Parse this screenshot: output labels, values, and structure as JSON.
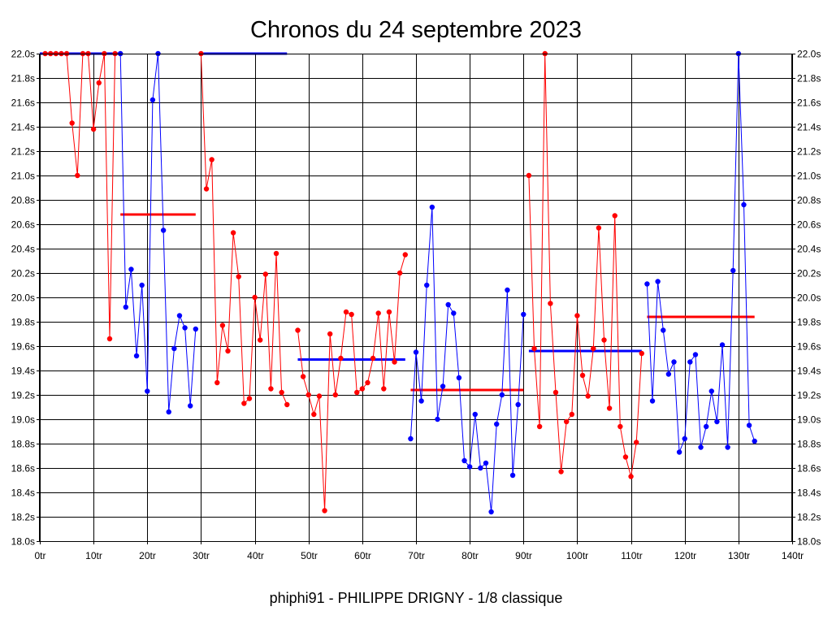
{
  "chart_data": {
    "type": "line",
    "title": "Chronos du 24 septembre 2023",
    "footer": "phiphi91 - PHILIPPE DRIGNY - 1/8 classique",
    "xlim": [
      0,
      140
    ],
    "ylim": [
      18.0,
      22.0
    ],
    "xticks": [
      0,
      10,
      20,
      30,
      40,
      50,
      60,
      70,
      80,
      90,
      100,
      110,
      120,
      130,
      140
    ],
    "yticks": [
      18.0,
      18.2,
      18.4,
      18.6,
      18.8,
      19.0,
      19.2,
      19.4,
      19.6,
      19.8,
      20.0,
      20.2,
      20.4,
      20.6,
      20.8,
      21.0,
      21.2,
      21.4,
      21.6,
      21.8,
      22.0
    ],
    "x_tick_labels": [
      "0tr",
      "10tr",
      "20tr",
      "30tr",
      "40tr",
      "50tr",
      "60tr",
      "70tr",
      "80tr",
      "90tr",
      "100tr",
      "110tr",
      "120tr",
      "130tr",
      "140tr"
    ],
    "y_tick_labels": [
      "18.0s",
      "18.2s",
      "18.4s",
      "18.6s",
      "18.8s",
      "19.0s",
      "19.2s",
      "19.4s",
      "19.6s",
      "19.8s",
      "20.0s",
      "20.2s",
      "20.4s",
      "20.6s",
      "20.8s",
      "21.0s",
      "21.2s",
      "21.4s",
      "21.6s",
      "21.8s",
      "22.0s"
    ],
    "grid": true,
    "colors": {
      "red": "#ff0000",
      "blue": "#0000ff"
    },
    "series": [
      {
        "color": "red",
        "x": [
          1,
          2,
          3,
          4,
          5,
          6,
          7,
          8,
          9,
          10,
          11,
          12,
          13,
          14
        ],
        "y": [
          22.0,
          22.0,
          22.0,
          22.0,
          22.0,
          21.43,
          21.0,
          22.0,
          22.0,
          21.38,
          21.76,
          22.0,
          19.66,
          22.0
        ]
      },
      {
        "color": "blue",
        "x": [
          15,
          16,
          17,
          18,
          19,
          20,
          21,
          22,
          23,
          24,
          25,
          26,
          27,
          28,
          29
        ],
        "y": [
          22.0,
          19.92,
          20.23,
          19.52,
          20.1,
          19.23,
          21.62,
          22.0,
          20.55,
          19.06,
          19.58,
          19.85,
          19.75,
          19.11,
          19.74
        ]
      },
      {
        "color": "red",
        "x": [
          30,
          31,
          32,
          33,
          34,
          35,
          36,
          37,
          38,
          39,
          40,
          41,
          42,
          43,
          44,
          45,
          46
        ],
        "y": [
          22.0,
          20.89,
          21.13,
          19.3,
          19.77,
          19.56,
          20.53,
          20.17,
          19.13,
          19.17,
          20.0,
          19.65,
          20.19,
          19.25,
          20.36,
          19.22,
          19.12
        ]
      },
      {
        "color": "red",
        "x": [
          48,
          49,
          50,
          51,
          52,
          53,
          54,
          55,
          56,
          57,
          58,
          59,
          60,
          61,
          62,
          63,
          64,
          65,
          66,
          67,
          68
        ],
        "y": [
          19.73,
          19.35,
          19.2,
          19.04,
          19.19,
          18.25,
          19.7,
          19.2,
          19.5,
          19.88,
          19.86,
          19.22,
          19.25,
          19.3,
          19.5,
          19.87,
          19.25,
          19.88,
          19.47,
          20.2,
          20.35
        ]
      },
      {
        "color": "blue",
        "x": [
          69,
          70,
          71,
          72,
          73,
          74,
          75,
          76,
          77,
          78,
          79,
          80,
          81,
          82,
          83,
          84,
          85,
          86,
          87,
          88,
          89,
          90
        ],
        "y": [
          18.84,
          19.55,
          19.15,
          20.1,
          20.74,
          19.0,
          19.27,
          19.94,
          19.87,
          19.34,
          18.66,
          18.61,
          19.04,
          18.6,
          18.64,
          18.24,
          18.96,
          19.2,
          20.06,
          18.54,
          19.12,
          19.86
        ]
      },
      {
        "color": "red",
        "x": [
          91,
          92,
          93,
          94,
          95,
          96,
          97,
          98,
          99,
          100,
          101,
          102,
          103,
          104,
          105,
          106,
          107,
          108,
          109,
          110,
          111,
          112
        ],
        "y": [
          21.0,
          19.58,
          18.94,
          22.0,
          19.95,
          19.22,
          18.57,
          18.98,
          19.04,
          19.85,
          19.36,
          19.19,
          19.58,
          20.57,
          19.65,
          19.09,
          20.67,
          18.94,
          18.69,
          18.53,
          18.81,
          19.54
        ]
      },
      {
        "color": "blue",
        "x": [
          113,
          114,
          115,
          116,
          117,
          118,
          119,
          120,
          121,
          122,
          123,
          124,
          125,
          126,
          127,
          128,
          129,
          130,
          131,
          132,
          133
        ],
        "y": [
          20.11,
          19.15,
          20.13,
          19.73,
          19.37,
          19.47,
          18.73,
          18.84,
          19.47,
          19.53,
          18.77,
          18.94,
          19.23,
          18.98,
          19.61,
          18.77,
          20.22,
          22.0,
          20.76,
          18.95,
          18.82
        ]
      }
    ],
    "averages": [
      {
        "color": "blue",
        "x": [
          0,
          15
        ],
        "y": 22.0
      },
      {
        "color": "red",
        "x": [
          15,
          29
        ],
        "y": 20.68
      },
      {
        "color": "blue",
        "x": [
          30,
          46
        ],
        "y": 22.0
      },
      {
        "color": "blue",
        "x": [
          48,
          68
        ],
        "y": 19.49
      },
      {
        "color": "red",
        "x": [
          69,
          90
        ],
        "y": 19.24
      },
      {
        "color": "blue",
        "x": [
          91,
          112
        ],
        "y": 19.56
      },
      {
        "color": "red",
        "x": [
          113,
          133
        ],
        "y": 19.84
      }
    ]
  }
}
